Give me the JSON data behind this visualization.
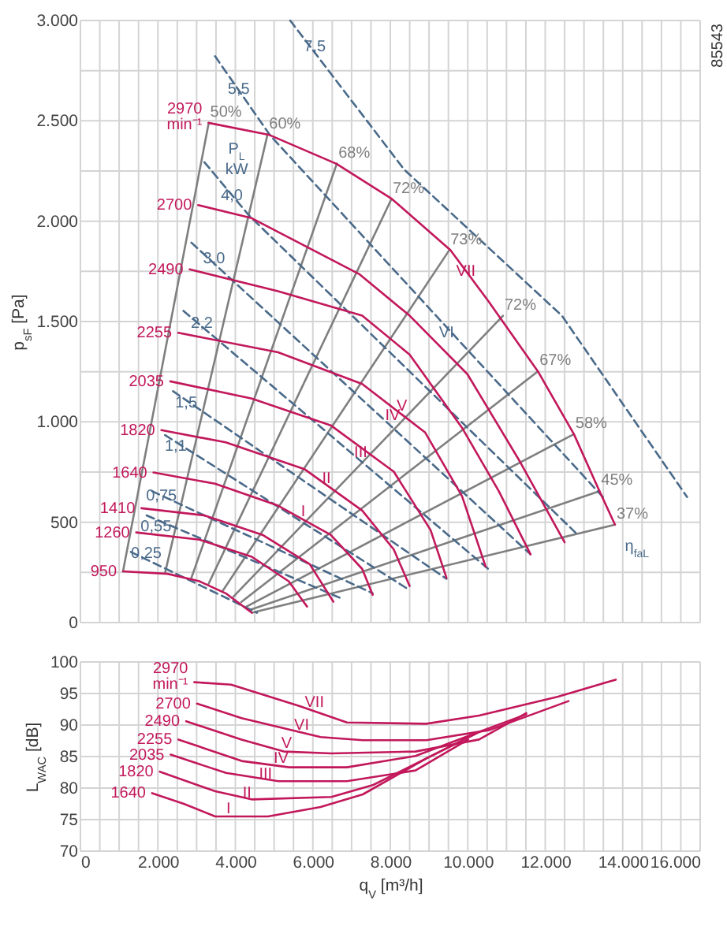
{
  "chart_data": [
    {
      "type": "line",
      "ylabel": "p$_{sF}$ [Pa]",
      "xlim": [
        0,
        16000
      ],
      "ylim": [
        0,
        3000
      ],
      "tick_labels": "y",
      "grid": true,
      "line_style": "solid",
      "xticks": [
        {
          "value": 0,
          "label": null
        },
        {
          "value": 500,
          "label": null
        },
        {
          "value": 1000,
          "label": null
        },
        {
          "value": 1500,
          "label": null
        },
        {
          "value": 2000,
          "label": null
        },
        {
          "value": 2500,
          "label": null
        },
        {
          "value": 3000,
          "label": null
        },
        {
          "value": 3500,
          "label": null
        },
        {
          "value": 4000,
          "label": null
        },
        {
          "value": 4500,
          "label": null
        },
        {
          "value": 5000,
          "label": null
        },
        {
          "value": 5500,
          "label": null
        },
        {
          "value": 6000,
          "label": null
        },
        {
          "value": 6500,
          "label": null
        },
        {
          "value": 7000,
          "label": null
        },
        {
          "value": 7500,
          "label": null
        },
        {
          "value": 8000,
          "label": null
        },
        {
          "value": 8500,
          "label": null
        },
        {
          "value": 9000,
          "label": null
        },
        {
          "value": 9500,
          "label": null
        },
        {
          "value": 10000,
          "label": null
        },
        {
          "value": 10500,
          "label": null
        },
        {
          "value": 11000,
          "label": null
        },
        {
          "value": 11500,
          "label": null
        },
        {
          "value": 12000,
          "label": null
        },
        {
          "value": 12500,
          "label": null
        },
        {
          "value": 13000,
          "label": null
        },
        {
          "value": 13500,
          "label": null
        },
        {
          "value": 14000,
          "label": null
        },
        {
          "value": 14500,
          "label": null
        },
        {
          "value": 15000,
          "label": null
        },
        {
          "value": 15500,
          "label": null
        },
        {
          "value": 16000,
          "label": null
        }
      ],
      "yticks": [
        0,
        {
          "value": 250,
          "label": null
        },
        500,
        {
          "value": 750,
          "label": null
        },
        {
          "value": 1000,
          "label": "1.000"
        },
        {
          "value": 1250,
          "label": null
        },
        {
          "value": 1500,
          "label": "1.500"
        },
        {
          "value": 1750,
          "label": null
        },
        {
          "value": 2000,
          "label": "2.000"
        },
        {
          "value": 2250,
          "label": null
        },
        {
          "value": 2500,
          "label": "2.500"
        },
        {
          "value": 2750,
          "label": null
        },
        {
          "value": 3000,
          "label": "3.000"
        }
      ],
      "series": [
        {
          "color": "#7f7f7f",
          "x": [
            3310,
            1099
          ],
          "values": [
            2488,
            255
          ]
        },
        {
          "color": "#7f7f7f",
          "x": [
            4830,
            2185
          ],
          "values": [
            2432,
            248
          ]
        },
        {
          "color": "#7f7f7f",
          "x": [
            6620,
            2865
          ],
          "values": [
            2287,
            223
          ]
        },
        {
          "color": "#7f7f7f",
          "x": [
            8020,
            3310
          ],
          "values": [
            2107,
            194
          ]
        },
        {
          "color": "#7f7f7f",
          "x": [
            9510,
            3680
          ],
          "values": [
            1852,
            160
          ]
        },
        {
          "color": "#7f7f7f",
          "x": [
            10910,
            3950
          ],
          "values": [
            1529,
            129
          ]
        },
        {
          "color": "#7f7f7f",
          "x": [
            11810,
            4150
          ],
          "values": [
            1252,
            102
          ]
        },
        {
          "color": "#7f7f7f",
          "x": [
            12740,
            4290
          ],
          "values": [
            939,
            80
          ]
        },
        {
          "color": "#7f7f7f",
          "x": [
            13400,
            4370
          ],
          "values": [
            655,
            63
          ]
        },
        {
          "color": "#7f7f7f",
          "x": [
            13800,
            4425
          ],
          "values": [
            488,
            49
          ]
        },
        {
          "color": "#4a6a8a",
          "line_style": "dashed",
          "x": [
            5415,
            8360,
            12430,
            15660
          ],
          "values": [
            3000,
            2257,
            1529,
            626
          ]
        },
        {
          "color": "#4a6a8a",
          "line_style": "dashed",
          "x": [
            3475,
            4900,
            13520
          ],
          "values": [
            2822,
            2427,
            619
          ]
        },
        {
          "color": "#4a6a8a",
          "line_style": "dashed",
          "x": [
            3200,
            4360,
            12840
          ],
          "values": [
            2294,
            2027,
            437
          ]
        },
        {
          "color": "#4a6a8a",
          "line_style": "dashed",
          "x": [
            2865,
            11620
          ],
          "values": [
            1893,
            340
          ]
        },
        {
          "color": "#4a6a8a",
          "line_style": "dashed",
          "x": [
            2660,
            10530
          ],
          "values": [
            1553,
            267
          ]
        },
        {
          "color": "#4a6a8a",
          "line_style": "dashed",
          "x": [
            2390,
            9450
          ],
          "values": [
            1153,
            218
          ]
        },
        {
          "color": "#4a6a8a",
          "line_style": "dashed",
          "x": [
            2185,
            8430
          ],
          "values": [
            934,
            170
          ]
        },
        {
          "color": "#4a6a8a",
          "line_style": "dashed",
          "x": [
            1845,
            7545
          ],
          "values": [
            655,
            146
          ]
        },
        {
          "color": "#4a6a8a",
          "line_style": "dashed",
          "x": [
            1710,
            6730
          ],
          "values": [
            534,
            121
          ]
        },
        {
          "color": "#4a6a8a",
          "line_style": "dashed",
          "x": [
            1300,
            4560
          ],
          "values": [
            352,
            49
          ]
        },
        {
          "name": "2970 min⁻¹",
          "color": "#c2185b",
          "x": [
            3306,
            4860,
            6610,
            8040,
            9550,
            10530,
            11810,
            12740,
            13400,
            13800
          ],
          "values": [
            2490,
            2431,
            2286,
            2111,
            1856,
            1602,
            1252,
            939,
            655,
            488
          ]
        },
        {
          "name": "2700",
          "color": "#c2185b",
          "x": [
            3040,
            4420,
            7210,
            8500,
            9990,
            11350,
            12500
          ],
          "values": [
            2080,
            2015,
            1735,
            1529,
            1238,
            801,
            400
          ]
        },
        {
          "name": "2490",
          "color": "#c2185b",
          "x": [
            2820,
            5100,
            7275,
            8500,
            9850,
            10800,
            11620
          ],
          "values": [
            1760,
            1651,
            1529,
            1335,
            971,
            655,
            340
          ]
        },
        {
          "name": "2255",
          "color": "#c2185b",
          "x": [
            2525,
            5100,
            7275,
            8900,
            9850,
            10460
          ],
          "values": [
            1444,
            1347,
            1189,
            947,
            631,
            279
          ]
        },
        {
          "name": "2035",
          "color": "#c2185b",
          "x": [
            2320,
            4425,
            6460,
            8090,
            9040,
            9450
          ],
          "values": [
            1202,
            1116,
            983,
            752,
            461,
            223
          ]
        },
        {
          "name": "1820",
          "color": "#c2185b",
          "x": [
            2090,
            3750,
            5780,
            7275,
            8090,
            8500
          ],
          "values": [
            959,
            898,
            765,
            558,
            364,
            182
          ]
        },
        {
          "name": "1640",
          "color": "#c2185b",
          "x": [
            1886,
            3475,
            5100,
            6460,
            7275,
            7545
          ],
          "values": [
            748,
            692,
            583,
            437,
            267,
            138
          ]
        },
        {
          "name": "1410",
          "color": "#c2185b",
          "x": [
            1575,
            3200,
            4700,
            5920,
            6530
          ],
          "values": [
            570,
            534,
            437,
            291,
            104
          ]
        },
        {
          "name": "1260",
          "color": "#c2185b",
          "x": [
            1440,
            3070,
            4425,
            5375,
            5850
          ],
          "values": [
            449,
            413,
            328,
            206,
            80
          ]
        },
        {
          "name": "950",
          "color": "#c2185b",
          "x": [
            1100,
            2250,
            3070,
            3750,
            4425
          ],
          "values": [
            255,
            243,
            206,
            146,
            49
          ]
        }
      ],
      "annotations": [
        {
          "text": "50%",
          "x": 3310,
          "y": 2488
        },
        {
          "text": "60%",
          "x": 4830,
          "y": 2432
        },
        {
          "text": "68%",
          "x": 6620,
          "y": 2287
        },
        {
          "text": "72%",
          "x": 8020,
          "y": 2107
        },
        {
          "text": "73%",
          "x": 9510,
          "y": 1852
        },
        {
          "text": "72%",
          "x": 10910,
          "y": 1529
        },
        {
          "text": "67%",
          "x": 11810,
          "y": 1252
        },
        {
          "text": "58%",
          "x": 12740,
          "y": 939
        },
        {
          "text": "45%",
          "x": 13400,
          "y": 655
        },
        {
          "text": "37%",
          "x": 13800,
          "y": 488
        },
        {
          "text": "7,5",
          "x": 6050,
          "y": 2869
        },
        {
          "text": "5,5",
          "x": 4085,
          "y": 2658
        },
        {
          "text": "4,0",
          "x": 3910,
          "y": 2129
        },
        {
          "text": "3,0",
          "x": 3450,
          "y": 1813
        },
        {
          "text": "2,2",
          "x": 3135,
          "y": 1493
        },
        {
          "text": "1,5",
          "x": 2730,
          "y": 1097
        },
        {
          "text": "1,1",
          "x": 2460,
          "y": 879
        },
        {
          "text": "0,75",
          "x": 2090,
          "y": 633
        },
        {
          "text": "0,55",
          "x": 1950,
          "y": 478
        },
        {
          "text": "0,25",
          "x": 1700,
          "y": 345
        },
        {
          "text": "VII",
          "x": 9950,
          "y": 1752
        },
        {
          "text": "VI",
          "x": 9450,
          "y": 1444
        },
        {
          "text": "V",
          "x": 8300,
          "y": 1080
        },
        {
          "text": "IV",
          "x": 8060,
          "y": 1032
        },
        {
          "text": "III",
          "x": 7235,
          "y": 850
        },
        {
          "text": "II",
          "x": 6350,
          "y": 720
        },
        {
          "text": "I",
          "x": 5750,
          "y": 553
        },
        "P$_{L}$ kW",
        "η$_{faL}$",
        "85543"
      ]
    },
    {
      "type": "line",
      "xlabel": "q$_{V}$ [m³/h]",
      "ylabel": "L$_{WAC}$ [dB]",
      "xlim": [
        0,
        16000
      ],
      "ylim": [
        70,
        100
      ],
      "grid": true,
      "line_style": "solid",
      "xticks": [
        0,
        {
          "value": 500,
          "label": null
        },
        {
          "value": 1000,
          "label": null
        },
        {
          "value": 1500,
          "label": null
        },
        {
          "value": 2000,
          "label": "2.000"
        },
        {
          "value": 2500,
          "label": null
        },
        {
          "value": 3000,
          "label": null
        },
        {
          "value": 3500,
          "label": null
        },
        {
          "value": 4000,
          "label": "4.000"
        },
        {
          "value": 4500,
          "label": null
        },
        {
          "value": 5000,
          "label": null
        },
        {
          "value": 5500,
          "label": null
        },
        {
          "value": 6000,
          "label": "6.000"
        },
        {
          "value": 6500,
          "label": null
        },
        {
          "value": 7000,
          "label": null
        },
        {
          "value": 7500,
          "label": null
        },
        {
          "value": 8000,
          "label": "8.000"
        },
        {
          "value": 8500,
          "label": null
        },
        {
          "value": 9000,
          "label": null
        },
        {
          "value": 9500,
          "label": null
        },
        {
          "value": 10000,
          "label": "10.000"
        },
        {
          "value": 10500,
          "label": null
        },
        {
          "value": 11000,
          "label": null
        },
        {
          "value": 11500,
          "label": null
        },
        {
          "value": 12000,
          "label": "12.000"
        },
        {
          "value": 12500,
          "label": null
        },
        {
          "value": 13000,
          "label": null
        },
        {
          "value": 13500,
          "label": null
        },
        {
          "value": 14000,
          "label": "14.000"
        },
        {
          "value": 14500,
          "label": null
        },
        {
          "value": 15000,
          "label": null
        },
        {
          "value": 15500,
          "label": null
        },
        {
          "value": 16000,
          "label": "16.000"
        }
      ],
      "yticks": [
        70,
        75,
        80,
        85,
        90,
        95,
        100
      ],
      "series": [
        {
          "name": "2970 min⁻¹",
          "color": "#c2185b",
          "x": [
            2940,
            3890,
            5660,
            6880,
            8930,
            10290,
            12330,
            13820
          ],
          "values": [
            96.8,
            96.4,
            93.0,
            90.4,
            90.2,
            91.5,
            94.5,
            97.2
          ]
        },
        {
          "name": "2700",
          "color": "#c2185b",
          "x": [
            3010,
            4160,
            6200,
            7290,
            8930,
            10560,
            12600
          ],
          "values": [
            93.4,
            91.1,
            88.1,
            87.6,
            87.6,
            89.2,
            93.8
          ]
        },
        {
          "name": "2490",
          "color": "#c2185b",
          "x": [
            2730,
            4160,
            5250,
            6480,
            8650,
            10290,
            11510
          ],
          "values": [
            90.6,
            87.7,
            85.8,
            85.5,
            85.8,
            87.7,
            91.9
          ]
        },
        {
          "name": "2255",
          "color": "#c2185b",
          "x": [
            2530,
            4160,
            5390,
            6880,
            8650,
            10290,
            11510
          ],
          "values": [
            87.7,
            84.3,
            83.3,
            83.3,
            85.1,
            88.9,
            91.7
          ]
        },
        {
          "name": "2035",
          "color": "#c2185b",
          "x": [
            2330,
            3760,
            5110,
            6880,
            8650,
            10010
          ],
          "values": [
            85.3,
            82.4,
            81.1,
            81.1,
            82.8,
            87.7
          ]
        },
        {
          "name": "1820",
          "color": "#c2185b",
          "x": [
            2050,
            3480,
            4440,
            6480,
            7560,
            8930,
            10290
          ],
          "values": [
            82.6,
            79.5,
            78.2,
            78.6,
            80.5,
            84.7,
            88.9
          ]
        },
        {
          "name": "1640",
          "color": "#c2185b",
          "x": [
            1850,
            2670,
            3480,
            4840,
            6200,
            7290,
            8930,
            10290
          ],
          "values": [
            79.2,
            77.5,
            75.5,
            75.5,
            77.0,
            79.0,
            84.7,
            88.9
          ]
        }
      ],
      "annotations": [
        {
          "text": "VII",
          "x": 6040,
          "y": 93.6
        },
        {
          "text": "VI",
          "x": 5710,
          "y": 90.0
        },
        {
          "text": "V",
          "x": 5320,
          "y": 87.1
        },
        {
          "text": "IV",
          "x": 5180,
          "y": 84.7
        },
        {
          "text": "III",
          "x": 4780,
          "y": 82.3
        },
        {
          "text": "II",
          "x": 4300,
          "y": 79.2
        },
        {
          "text": "I",
          "x": 3820,
          "y": 76.7
        }
      ]
    }
  ]
}
